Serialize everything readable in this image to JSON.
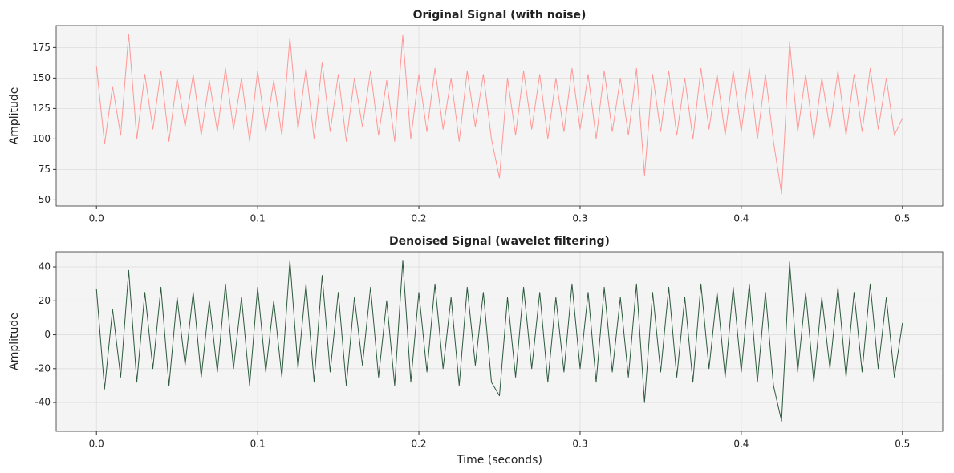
{
  "chart_data": [
    {
      "type": "line",
      "title": "Original Signal (with noise)",
      "ylabel": "Amplitude",
      "x": [
        0,
        0.005,
        0.01,
        0.015,
        0.02,
        0.025,
        0.03,
        0.035,
        0.04,
        0.045,
        0.05,
        0.055,
        0.06,
        0.065,
        0.07,
        0.075,
        0.08,
        0.085,
        0.09,
        0.095,
        0.1,
        0.105,
        0.11,
        0.115,
        0.12,
        0.125,
        0.13,
        0.135,
        0.14,
        0.145,
        0.15,
        0.155,
        0.16,
        0.165,
        0.17,
        0.175,
        0.18,
        0.185,
        0.19,
        0.195,
        0.2,
        0.205,
        0.21,
        0.215,
        0.22,
        0.225,
        0.23,
        0.235,
        0.24,
        0.245,
        0.25,
        0.255,
        0.26,
        0.265,
        0.27,
        0.275,
        0.28,
        0.285,
        0.29,
        0.295,
        0.3,
        0.305,
        0.31,
        0.315,
        0.32,
        0.325,
        0.33,
        0.335,
        0.34,
        0.345,
        0.35,
        0.355,
        0.36,
        0.365,
        0.37,
        0.375,
        0.38,
        0.385,
        0.39,
        0.395,
        0.4,
        0.405,
        0.41,
        0.415,
        0.42,
        0.425,
        0.43,
        0.435,
        0.44,
        0.445,
        0.45,
        0.455,
        0.46,
        0.465,
        0.47,
        0.475,
        0.48,
        0.485,
        0.49,
        0.495,
        0.5
      ],
      "values": [
        160,
        96,
        143,
        103,
        186,
        100,
        153,
        108,
        156,
        98,
        150,
        110,
        153,
        103,
        148,
        106,
        158,
        108,
        150,
        98,
        156,
        106,
        148,
        103,
        183,
        108,
        158,
        100,
        163,
        106,
        153,
        98,
        150,
        110,
        156,
        103,
        148,
        98,
        185,
        100,
        153,
        106,
        158,
        108,
        150,
        98,
        156,
        110,
        153,
        100,
        68,
        150,
        103,
        156,
        108,
        153,
        100,
        150,
        106,
        158,
        108,
        153,
        100,
        156,
        106,
        150,
        103,
        158,
        70,
        153,
        106,
        156,
        103,
        150,
        100,
        158,
        108,
        153,
        103,
        156,
        106,
        158,
        100,
        153,
        98,
        55,
        180,
        106,
        153,
        100,
        150,
        108,
        156,
        103,
        153,
        106,
        158,
        108,
        150,
        103,
        117
      ],
      "color": "#ff9896",
      "xlim": [
        -0.025,
        0.525
      ],
      "ylim": [
        45,
        193
      ],
      "xticks": [
        {
          "value": 0,
          "label": "0.0"
        },
        0.1,
        0.2,
        0.3,
        0.4,
        0.5
      ],
      "yticks": [
        50,
        75,
        100,
        125,
        150,
        175
      ],
      "grid": true
    },
    {
      "type": "line",
      "title": "Denoised Signal (wavelet filtering)",
      "xlabel": "Time (seconds)",
      "ylabel": "Amplitude",
      "x": [
        0,
        0.005,
        0.01,
        0.015,
        0.02,
        0.025,
        0.03,
        0.035,
        0.04,
        0.045,
        0.05,
        0.055,
        0.06,
        0.065,
        0.07,
        0.075,
        0.08,
        0.085,
        0.09,
        0.095,
        0.1,
        0.105,
        0.11,
        0.115,
        0.12,
        0.125,
        0.13,
        0.135,
        0.14,
        0.145,
        0.15,
        0.155,
        0.16,
        0.165,
        0.17,
        0.175,
        0.18,
        0.185,
        0.19,
        0.195,
        0.2,
        0.205,
        0.21,
        0.215,
        0.22,
        0.225,
        0.23,
        0.235,
        0.24,
        0.245,
        0.25,
        0.255,
        0.26,
        0.265,
        0.27,
        0.275,
        0.28,
        0.285,
        0.29,
        0.295,
        0.3,
        0.305,
        0.31,
        0.315,
        0.32,
        0.325,
        0.33,
        0.335,
        0.34,
        0.345,
        0.35,
        0.355,
        0.36,
        0.365,
        0.37,
        0.375,
        0.38,
        0.385,
        0.39,
        0.395,
        0.4,
        0.405,
        0.41,
        0.415,
        0.42,
        0.425,
        0.43,
        0.435,
        0.44,
        0.445,
        0.45,
        0.455,
        0.46,
        0.465,
        0.47,
        0.475,
        0.48,
        0.485,
        0.49,
        0.495,
        0.5
      ],
      "values": [
        27,
        -32,
        15,
        -25,
        38,
        -28,
        25,
        -20,
        28,
        -30,
        22,
        -18,
        25,
        -25,
        20,
        -22,
        30,
        -20,
        22,
        -30,
        28,
        -22,
        20,
        -25,
        44,
        -20,
        30,
        -28,
        35,
        -22,
        25,
        -30,
        22,
        -18,
        28,
        -25,
        20,
        -30,
        44,
        -28,
        25,
        -22,
        30,
        -20,
        22,
        -30,
        28,
        -18,
        25,
        -28,
        -36,
        22,
        -25,
        28,
        -20,
        25,
        -28,
        22,
        -22,
        30,
        -20,
        25,
        -28,
        28,
        -22,
        22,
        -25,
        30,
        -40,
        25,
        -22,
        28,
        -25,
        22,
        -28,
        30,
        -20,
        25,
        -25,
        28,
        -22,
        30,
        -28,
        25,
        -30,
        -51,
        43,
        -22,
        25,
        -28,
        22,
        -20,
        28,
        -25,
        25,
        -22,
        30,
        -20,
        22,
        -25,
        7
      ],
      "color": "#2d5a3d",
      "xlim": [
        -0.025,
        0.525
      ],
      "ylim": [
        -57,
        49
      ],
      "xticks": [
        {
          "value": 0,
          "label": "0.0"
        },
        0.1,
        0.2,
        0.3,
        0.4,
        0.5
      ],
      "yticks": [
        -40,
        -20,
        0,
        20,
        40
      ],
      "grid": true
    }
  ]
}
